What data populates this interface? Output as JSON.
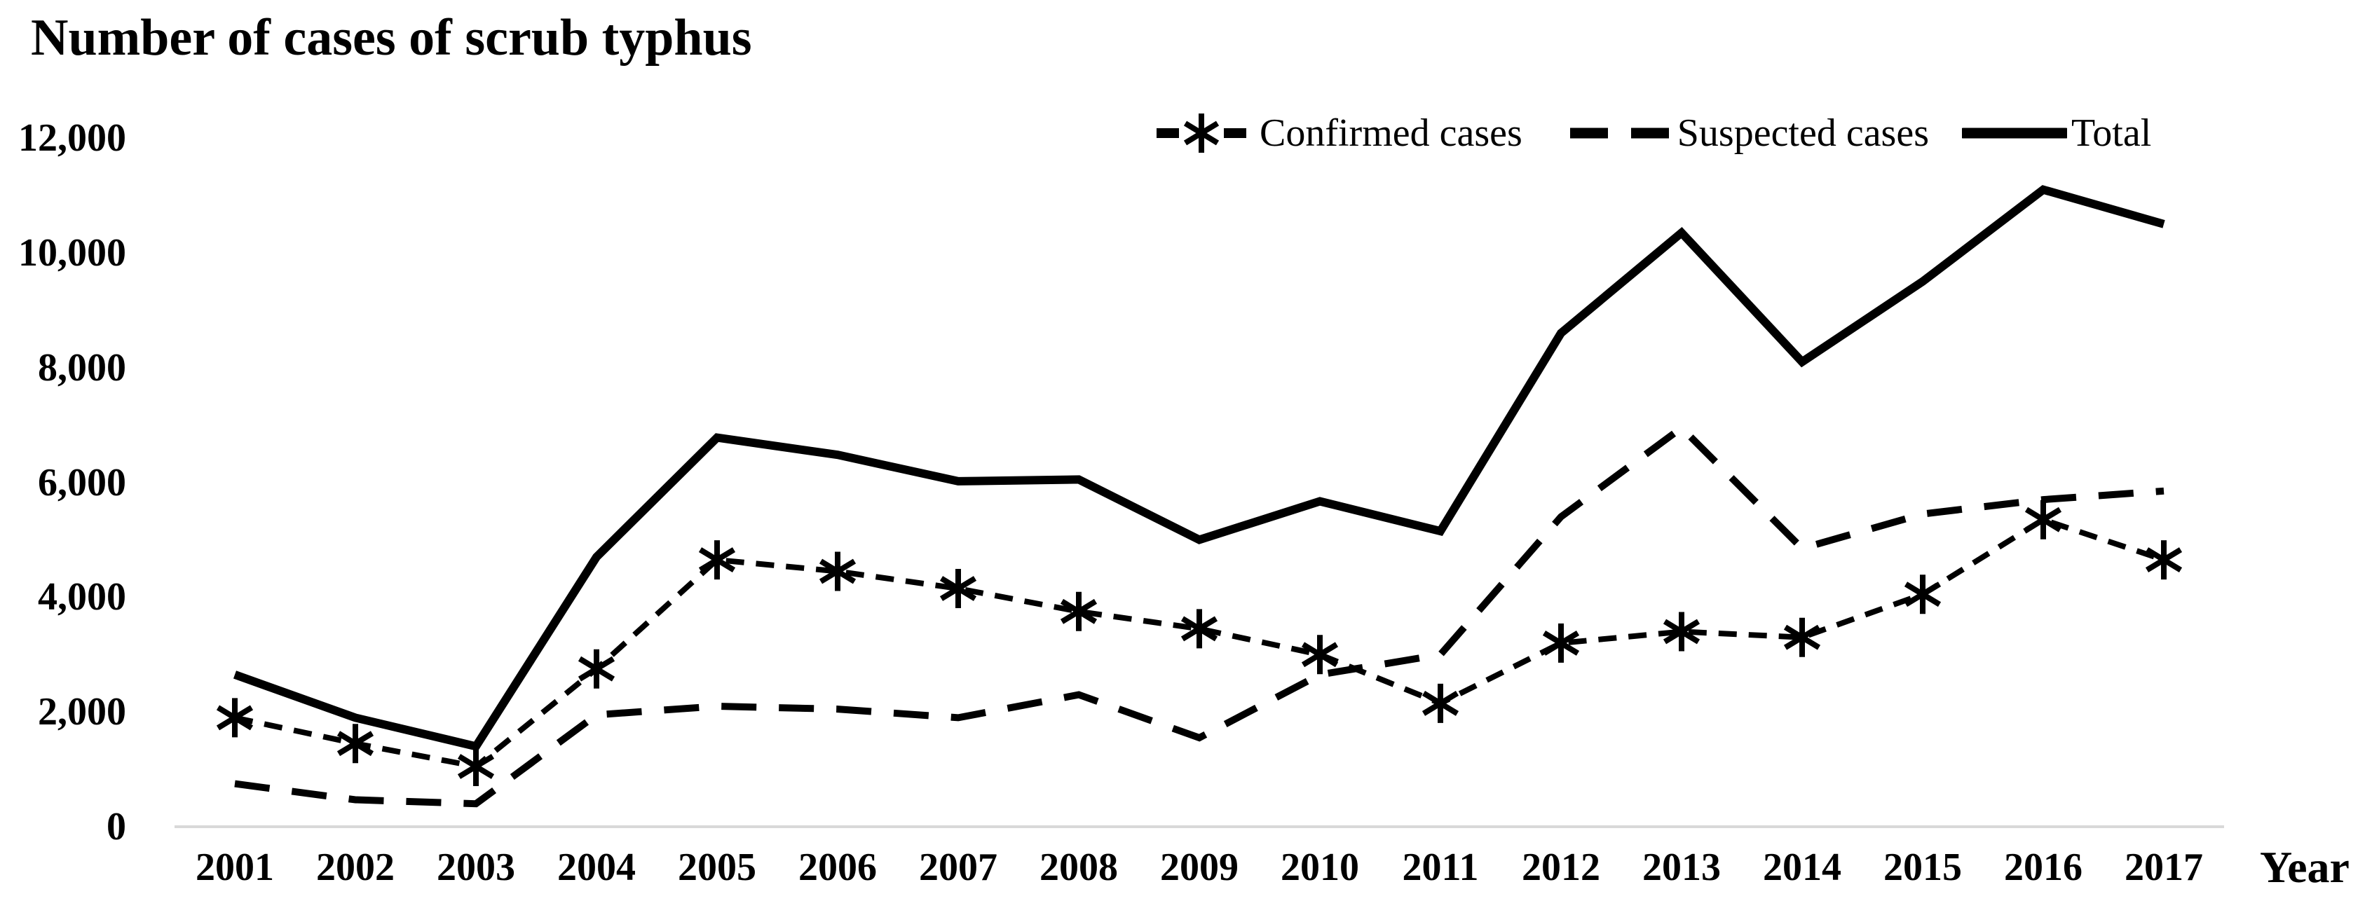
{
  "chart_data": {
    "type": "line",
    "title": "Number of cases of scrub typhus",
    "xlabel": "Year",
    "ylabel": "",
    "grid": false,
    "legend_position": "top-right",
    "x_categories": [
      "2001",
      "2002",
      "2003",
      "2004",
      "2005",
      "2006",
      "2007",
      "2008",
      "2009",
      "2010",
      "2011",
      "2012",
      "2013",
      "2014",
      "2015",
      "2016",
      "2017"
    ],
    "y_axis": {
      "min": 0,
      "max": 12000,
      "tick_step": 2000,
      "tick_values": [
        0,
        2000,
        4000,
        6000,
        8000,
        10000,
        12000
      ],
      "tick_labels": [
        "0",
        "2,000",
        "4,000",
        "6,000",
        "8,000",
        "10,000",
        "12,000"
      ]
    },
    "series": [
      {
        "name": "Confirmed cases",
        "line_style": "dashed-short",
        "marker": "asterisk",
        "color": "#000000",
        "values": [
          1900,
          1450,
          1050,
          2750,
          4650,
          4450,
          4150,
          3750,
          3450,
          3000,
          2150,
          3200,
          3400,
          3300,
          4050,
          5350,
          4650
        ]
      },
      {
        "name": "Suspected cases",
        "line_style": "dashed-long",
        "marker": "none",
        "color": "#000000",
        "values": [
          750,
          470,
          400,
          1950,
          2100,
          2050,
          1900,
          2300,
          1550,
          2650,
          3000,
          5400,
          6950,
          4850,
          5450,
          5700,
          5850
        ]
      },
      {
        "name": "Total",
        "line_style": "solid",
        "marker": "none",
        "color": "#000000",
        "values": [
          2650,
          1900,
          1400,
          4700,
          6780,
          6480,
          6020,
          6050,
          5000,
          5670,
          5150,
          8600,
          10350,
          8100,
          9500,
          11100,
          10500
        ]
      }
    ],
    "colors": {
      "ink": "#000000",
      "axis_line": "#d9d9d9",
      "background": "#ffffff"
    }
  }
}
